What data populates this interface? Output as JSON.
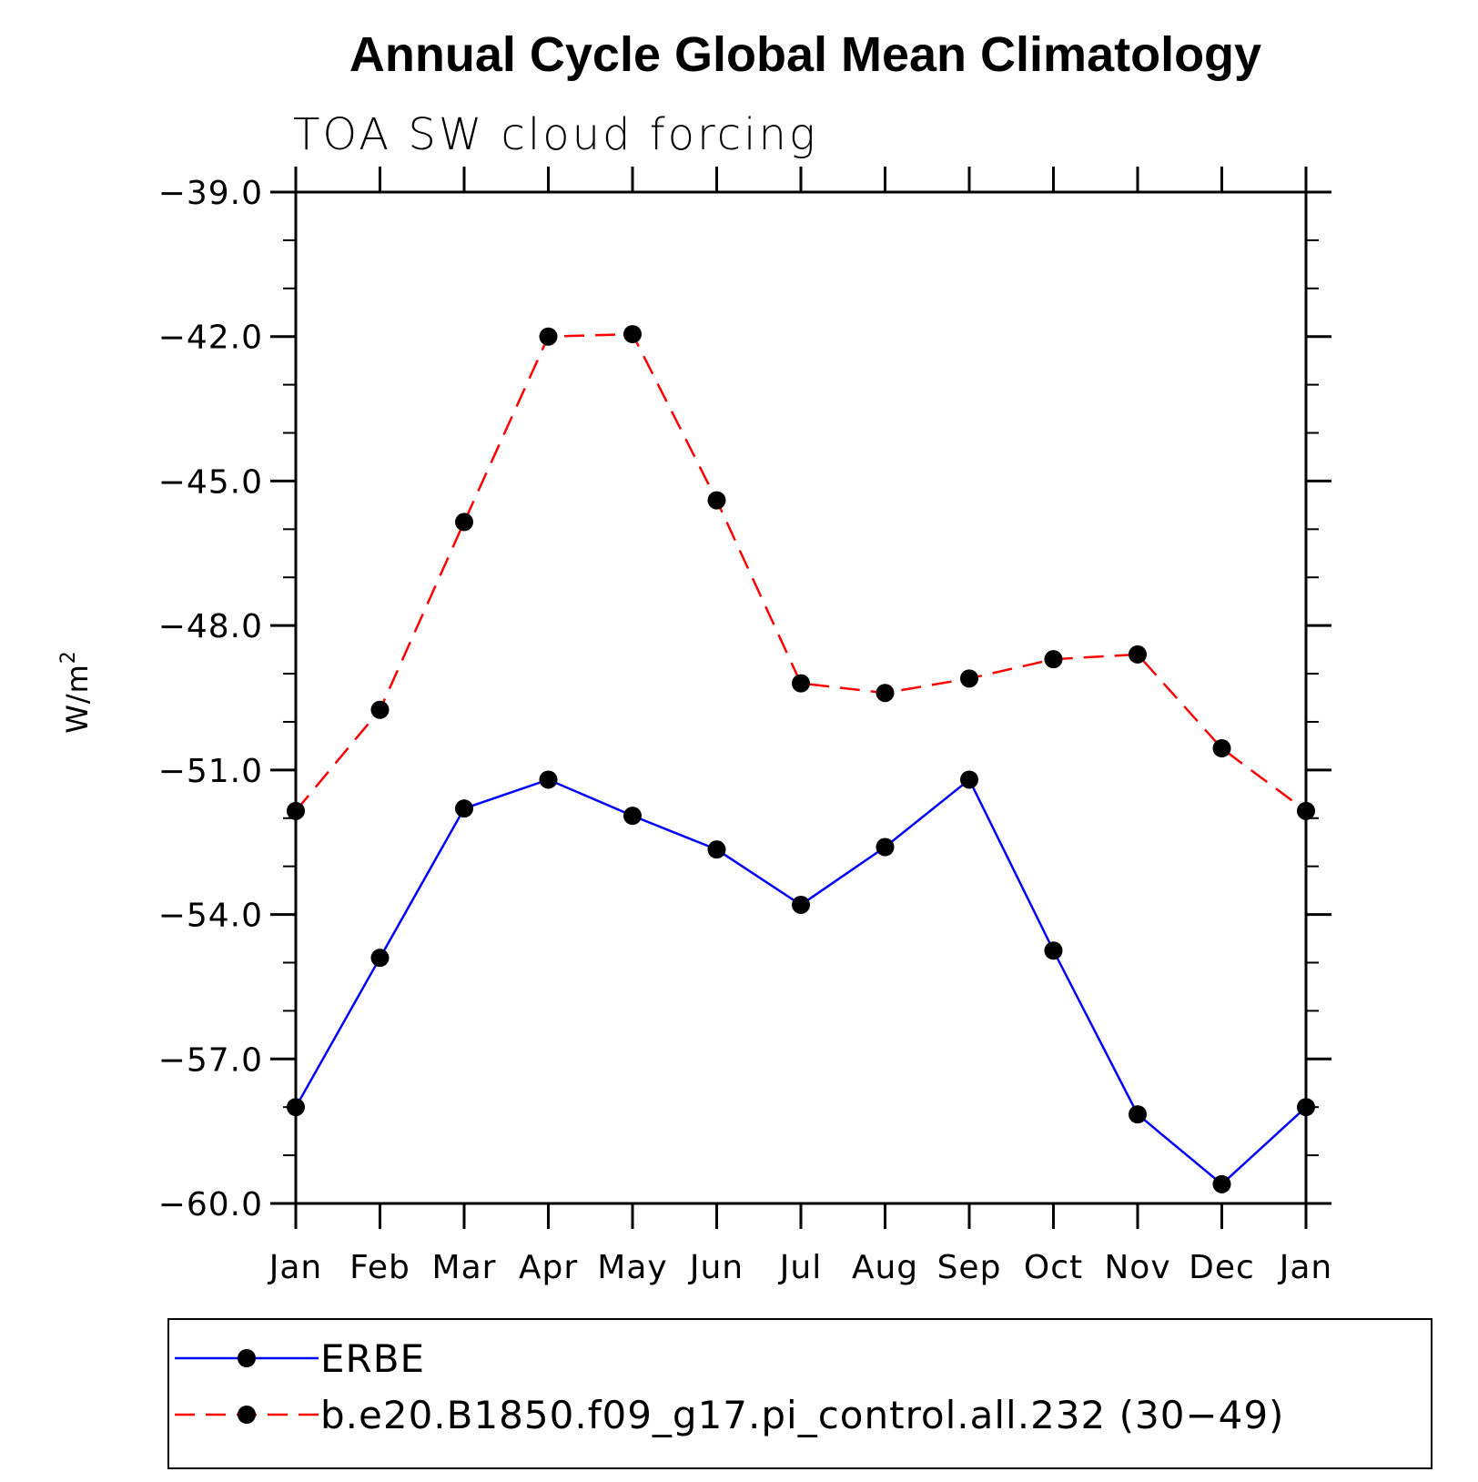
{
  "chart_data": {
    "type": "line",
    "title": "Annual Cycle Global Mean Climatology",
    "subtitle": "TOA SW cloud forcing",
    "ylabel": "W/m",
    "ylabel_superscript": "2",
    "xlabel": "",
    "categories": [
      "Jan",
      "Feb",
      "Mar",
      "Apr",
      "May",
      "Jun",
      "Jul",
      "Aug",
      "Sep",
      "Oct",
      "Nov",
      "Dec",
      "Jan"
    ],
    "ylim": [
      -60.0,
      -39.0
    ],
    "yticks": [
      -39.0,
      -42.0,
      -45.0,
      -48.0,
      -51.0,
      -54.0,
      -57.0,
      -60.0
    ],
    "ytick_labels": [
      "−39.0",
      "−42.0",
      "−45.0",
      "−48.0",
      "−51.0",
      "−54.0",
      "−57.0",
      "−60.0"
    ],
    "grid": false,
    "legend_position": "bottom",
    "series": [
      {
        "name": "ERBE",
        "color": "#0000ff",
        "line_style": "solid",
        "marker": "filled-circle",
        "values": [
          -58.0,
          -54.9,
          -51.8,
          -51.2,
          -51.95,
          -52.65,
          -53.8,
          -52.6,
          -51.2,
          -54.75,
          -58.15,
          -59.6,
          -58.0
        ]
      },
      {
        "name": "b.e20.B1850.f09_g17.pi_control.all.232 (30−49)",
        "color": "#ff0000",
        "line_style": "dashed",
        "marker": "filled-circle",
        "values": [
          -51.85,
          -49.75,
          -45.85,
          -42.0,
          -41.95,
          -45.4,
          -49.2,
          -49.4,
          -49.1,
          -48.7,
          -48.6,
          -50.55,
          -51.85
        ]
      }
    ]
  }
}
